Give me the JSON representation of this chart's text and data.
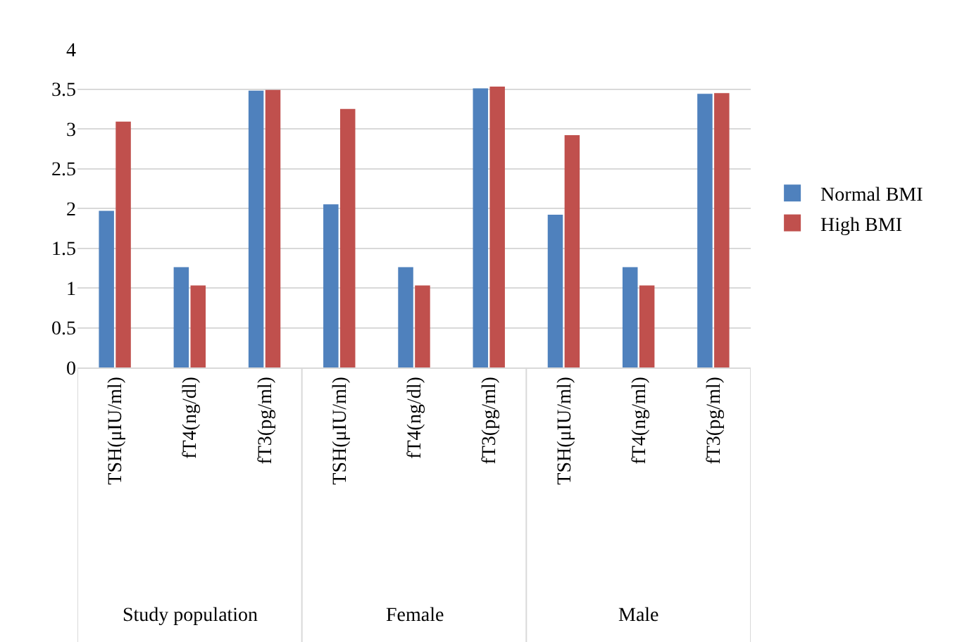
{
  "chart_data": {
    "type": "bar",
    "categories": [
      "TSH(μIU/ml)",
      "fT4(ng/dl)",
      "fT3(pg/ml)",
      "TSH(μIU/ml)",
      "fT4(ng/dl)",
      "fT3(pg/ml)",
      "TSH(μIU/ml)",
      "fT4(ng/ml)",
      "fT3(pg/ml)"
    ],
    "series": [
      {
        "name": "Normal BMI",
        "color": "#4f81bd",
        "values": [
          1.97,
          1.26,
          3.48,
          2.05,
          1.26,
          3.51,
          1.92,
          1.26,
          3.44
        ]
      },
      {
        "name": "High BMI",
        "color": "#c0504d",
        "values": [
          3.09,
          1.03,
          3.49,
          3.25,
          1.03,
          3.53,
          2.92,
          1.03,
          3.45
        ]
      }
    ],
    "annotations": [
      "Study population",
      "Female",
      "Male"
    ],
    "ylim": [
      0,
      4
    ],
    "yticks": [
      0,
      0.5,
      1,
      1.5,
      2,
      2.5,
      3,
      3.5,
      4
    ],
    "grid": "y",
    "legend": "right"
  }
}
